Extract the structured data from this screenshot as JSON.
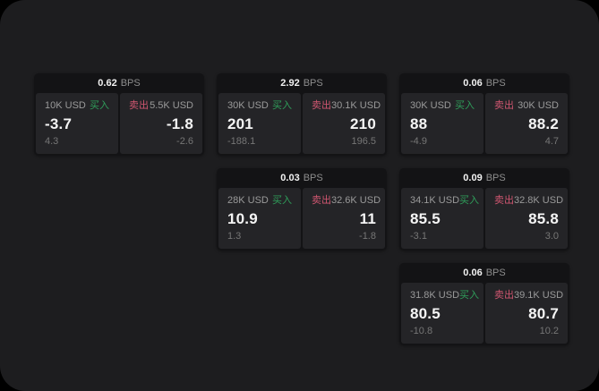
{
  "labels": {
    "bps_unit": "BPS",
    "buy": "买入",
    "sell": "卖出"
  },
  "colors": {
    "buy_green": "#2f9e5a",
    "sell_red": "#cf5670",
    "price_text": "#f5f5f5",
    "panel_bg": "#242427",
    "card_bg": "#131315",
    "screen_bg": "#1d1d1f"
  },
  "cards": [
    {
      "bps": "0.62",
      "buy": {
        "amount": "10K USD",
        "price": "-3.7",
        "change": "4.3"
      },
      "sell": {
        "amount": "5.5K USD",
        "price": "-1.8",
        "change": "-2.6"
      }
    },
    {
      "bps": "2.92",
      "buy": {
        "amount": "30K USD",
        "price": "201",
        "change": "-188.1"
      },
      "sell": {
        "amount": "30.1K USD",
        "price": "210",
        "change": "196.5"
      }
    },
    {
      "bps": "0.06",
      "buy": {
        "amount": "30K USD",
        "price": "88",
        "change": "-4.9"
      },
      "sell": {
        "amount": "30K USD",
        "price": "88.2",
        "change": "4.7"
      }
    },
    {
      "bps": "0.03",
      "buy": {
        "amount": "28K USD",
        "price": "10.9",
        "change": "1.3"
      },
      "sell": {
        "amount": "32.6K USD",
        "price": "11",
        "change": "-1.8"
      }
    },
    {
      "bps": "0.09",
      "buy": {
        "amount": "34.1K USD",
        "price": "85.5",
        "change": "-3.1"
      },
      "sell": {
        "amount": "32.8K USD",
        "price": "85.8",
        "change": "3.0"
      }
    },
    {
      "bps": "0.06",
      "buy": {
        "amount": "31.8K USD",
        "price": "80.5",
        "change": "-10.8"
      },
      "sell": {
        "amount": "39.1K USD",
        "price": "80.7",
        "change": "10.2"
      }
    }
  ]
}
